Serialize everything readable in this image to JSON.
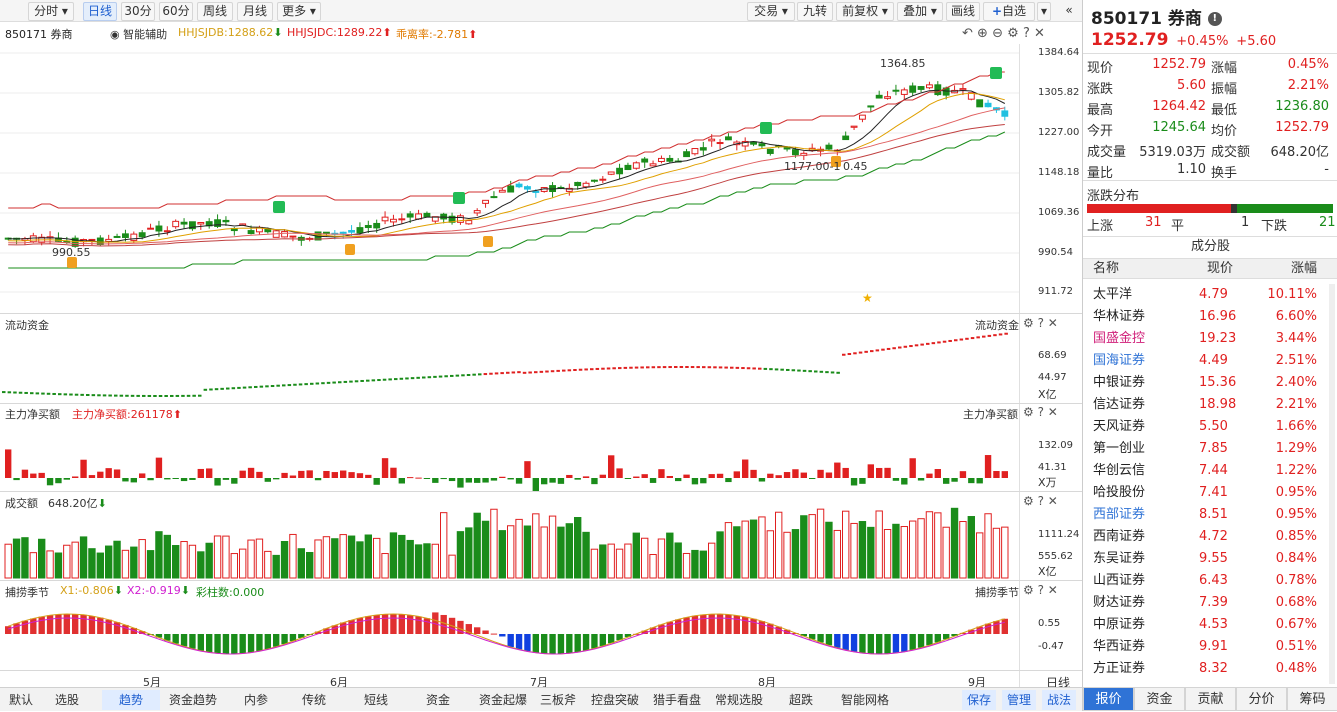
{
  "toolbar": {
    "left": [
      "分时",
      "日线",
      "30分",
      "60分",
      "周线",
      "月线",
      "更多"
    ],
    "right": [
      "交易",
      "九转",
      "前复权",
      "叠加",
      "画线",
      "自选"
    ],
    "active": "日线"
  },
  "main": {
    "code_name": "850171 券商",
    "assist": "智能辅助",
    "ind1": "HHJSJDB:1288.62",
    "ind2": "HHJSJDC:1289.22",
    "ind3": "乖离率:-2.781",
    "axis": [
      "1384.64",
      "1305.82",
      "1227.00",
      "1148.18",
      "1069.36",
      "990.54",
      "911.72"
    ],
    "labels": {
      "high": "1364.85",
      "low": "990.55",
      "mid": "1177.00-1",
      "mid2": "0.45"
    }
  },
  "flow": {
    "title": "流动资金",
    "axis": [
      "68.69",
      "44.97",
      "X亿"
    ]
  },
  "netbuy": {
    "title": "主力净买额",
    "value": "主力净买额:261178",
    "axis": [
      "132.09",
      "41.31",
      "X万"
    ]
  },
  "turnover": {
    "title": "成交额",
    "value": "648.20亿",
    "axis": [
      "1111.24",
      "555.62",
      "X亿"
    ]
  },
  "season": {
    "title": "捕捞季节",
    "x1": "X1:-0.806",
    "x2": "X2:-0.919",
    "cz": "彩柱数:0.000",
    "axis": [
      "0.55",
      "-0.47"
    ]
  },
  "months": [
    "5月",
    "6月",
    "7月",
    "8月",
    "9月"
  ],
  "bottom_tabs": [
    "默认",
    "选股",
    "趋势",
    "资金趋势",
    "内参",
    "传统",
    "短线",
    "资金",
    "资金起爆",
    "三板斧",
    "控盘突破",
    "猎手看盘",
    "常规选股",
    "超跌",
    "智能网格"
  ],
  "bottom_active": "趋势",
  "bottom_right": [
    "日线",
    "保存",
    "管理",
    "战法"
  ],
  "quote": {
    "title": "850171 券商",
    "price": "1252.79",
    "pct": "+0.45%",
    "chg": "+5.60",
    "rows": [
      [
        "现价",
        "1252.79",
        "涨幅",
        "0.45%"
      ],
      [
        "涨跌",
        "5.60",
        "振幅",
        "2.21%"
      ],
      [
        "最高",
        "1264.42",
        "最低",
        "1236.80"
      ],
      [
        "今开",
        "1245.64",
        "均价",
        "1252.79"
      ],
      [
        "成交量",
        "5319.03万",
        "成交额",
        "648.20亿"
      ],
      [
        "量比",
        "1.10",
        "换手",
        "-"
      ]
    ]
  },
  "dist": {
    "title": "涨跌分布",
    "up_label": "上涨",
    "up": "31",
    "flat_label": "平",
    "flat": "1",
    "down_label": "下跌",
    "down": "21"
  },
  "components": {
    "title": "成分股",
    "headers": [
      "名称",
      "现价",
      "涨幅"
    ],
    "rows": [
      [
        "太平洋",
        "4.79",
        "10.11%"
      ],
      [
        "华林证券",
        "16.96",
        "6.60%"
      ],
      [
        "国盛金控",
        "19.23",
        "3.44%"
      ],
      [
        "国海证券",
        "4.49",
        "2.51%"
      ],
      [
        "中银证券",
        "15.36",
        "2.40%"
      ],
      [
        "信达证券",
        "18.98",
        "2.21%"
      ],
      [
        "天风证券",
        "5.50",
        "1.66%"
      ],
      [
        "第一创业",
        "7.85",
        "1.29%"
      ],
      [
        "华创云信",
        "7.44",
        "1.22%"
      ],
      [
        "哈投股份",
        "7.41",
        "0.95%"
      ],
      [
        "西部证券",
        "8.51",
        "0.95%"
      ],
      [
        "西南证券",
        "4.72",
        "0.85%"
      ],
      [
        "东吴证券",
        "9.55",
        "0.84%"
      ],
      [
        "山西证券",
        "6.43",
        "0.78%"
      ],
      [
        "财达证券",
        "7.39",
        "0.68%"
      ],
      [
        "中原证券",
        "4.53",
        "0.67%"
      ],
      [
        "华西证券",
        "9.91",
        "0.51%"
      ],
      [
        "方正证券",
        "8.32",
        "0.48%"
      ]
    ],
    "name_colors": {
      "2": "#d0207a",
      "3": "#2f73d6",
      "10": "#2f73d6"
    }
  },
  "right_tabs": [
    "报价",
    "资金",
    "贡献",
    "分价",
    "筹码"
  ],
  "right_active": "报价"
}
